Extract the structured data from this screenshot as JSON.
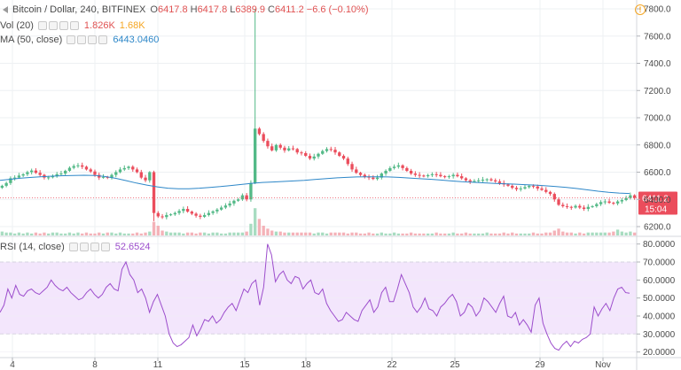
{
  "symbol": {
    "title": "Bitcoin / Dollar, 240, BITFINEX",
    "open_label": "O",
    "open": "6417.8",
    "high_label": "H",
    "high": "6417.8",
    "low_label": "L",
    "low": "6389.9",
    "close_label": "C",
    "close": "6411.2",
    "change": "−6.6 (−0.10%)"
  },
  "volume": {
    "label": "Vol (20)",
    "value1": "1.826K",
    "value2": "1.68K"
  },
  "ma": {
    "label": "MA (50, close)",
    "value": "6443.0460"
  },
  "rsi": {
    "label": "RSI (14, close)",
    "value": "52.6524"
  },
  "price_tag": {
    "price": "6411.2",
    "countdown": "15:04"
  },
  "alert_icon": "!",
  "price_axis": {
    "ticks": [
      "7800.0",
      "7600.0",
      "7400.0",
      "7200.0",
      "7000.0",
      "6800.0",
      "6600.0",
      "6400.0",
      "6200.0"
    ]
  },
  "rsi_axis": {
    "ticks": [
      "80.0000",
      "70.0000",
      "60.0000",
      "50.0000",
      "40.0000",
      "30.0000",
      "20.0000"
    ]
  },
  "time_axis": {
    "ticks": [
      "4",
      "8",
      "11",
      "15",
      "18",
      "22",
      "25",
      "29",
      "Nov"
    ]
  },
  "colors": {
    "up": "#53b987",
    "down": "#eb4d5c",
    "ma": "#2d87c8",
    "rsi": "#9c4dcc",
    "rsi_band": "#f3e6fc",
    "grid": "#eef0f3"
  },
  "chart_data": [
    {
      "type": "candlestick",
      "title": "Bitcoin / Dollar, 240, BITFINEX",
      "x_ticks": [
        "4",
        "8",
        "11",
        "15",
        "18",
        "22",
        "25",
        "29",
        "Nov"
      ],
      "ylim": [
        6150,
        7850
      ],
      "series": [
        {
          "name": "MA (50, close)",
          "values": [
            6540,
            6548,
            6556,
            6562,
            6567,
            6571,
            6574,
            6576,
            6577,
            6576,
            6568,
            6555,
            6538,
            6520,
            6505,
            6492,
            6482,
            6478,
            6478,
            6482,
            6488,
            6494,
            6502,
            6510,
            6518,
            6524,
            6528,
            6532,
            6536,
            6540,
            6546,
            6552,
            6558,
            6562,
            6565,
            6566,
            6566,
            6565,
            6562,
            6557,
            6552,
            6548,
            6542,
            6536,
            6530,
            6526,
            6522,
            6518,
            6515,
            6512,
            6508,
            6505,
            6500,
            6494,
            6488,
            6480,
            6470,
            6460,
            6452,
            6446,
            6443
          ]
        }
      ],
      "close": [
        6500,
        6520,
        6555,
        6560,
        6575,
        6585,
        6600,
        6612,
        6595,
        6580,
        6560,
        6562,
        6570,
        6585,
        6590,
        6610,
        6632,
        6645,
        6650,
        6640,
        6620,
        6605,
        6580,
        6560,
        6565,
        6560,
        6580,
        6600,
        6620,
        6630,
        6640,
        6620,
        6600,
        6560,
        6540,
        6600,
        6300,
        6275,
        6270,
        6285,
        6290,
        6300,
        6315,
        6330,
        6310,
        6295,
        6280,
        6272,
        6285,
        6300,
        6312,
        6325,
        6340,
        6355,
        6370,
        6390,
        6400,
        6430,
        6400,
        6520,
        6920,
        6880,
        6830,
        6790,
        6760,
        6800,
        6780,
        6760,
        6775,
        6770,
        6745,
        6740,
        6720,
        6700,
        6715,
        6735,
        6755,
        6770,
        6765,
        6745,
        6720,
        6700,
        6660,
        6620,
        6595,
        6580,
        6568,
        6560,
        6550,
        6560,
        6590,
        6610,
        6630,
        6640,
        6650,
        6630,
        6610,
        6590,
        6580,
        6575,
        6570,
        6578,
        6585,
        6580,
        6570,
        6565,
        6570,
        6580,
        6570,
        6555,
        6540,
        6530,
        6535,
        6540,
        6545,
        6548,
        6540,
        6532,
        6520,
        6510,
        6500,
        6485,
        6475,
        6480,
        6490,
        6500,
        6495,
        6480,
        6470,
        6455,
        6440,
        6400,
        6360,
        6350,
        6345,
        6340,
        6352,
        6340,
        6330,
        6345,
        6350,
        6365,
        6380,
        6385,
        6375,
        6370,
        6385,
        6395,
        6410,
        6430,
        6411
      ],
      "volume": [
        4,
        3,
        3,
        2,
        3,
        2,
        3,
        2,
        3,
        2,
        3,
        2,
        3,
        3,
        2,
        2,
        3,
        2,
        3,
        2,
        3,
        2,
        2,
        3,
        2,
        3,
        3,
        2,
        3,
        2,
        2,
        2,
        3,
        2,
        3,
        4,
        14,
        10,
        5,
        4,
        3,
        3,
        3,
        2,
        3,
        3,
        2,
        3,
        3,
        2,
        3,
        3,
        2,
        2,
        3,
        3,
        3,
        3,
        4,
        12,
        28,
        17,
        10,
        7,
        5,
        4,
        4,
        3,
        3,
        3,
        3,
        3,
        3,
        3,
        2,
        3,
        3,
        2,
        3,
        3,
        3,
        3,
        2,
        3,
        3,
        2,
        2,
        3,
        2,
        2,
        3,
        2,
        2,
        3,
        2,
        2,
        2,
        3,
        2,
        2,
        2,
        2,
        2,
        3,
        2,
        2,
        2,
        3,
        2,
        2,
        3,
        2,
        2,
        2,
        2,
        3,
        2,
        2,
        2,
        3,
        2,
        3,
        2,
        2,
        2,
        2,
        3,
        2,
        2,
        3,
        3,
        5,
        7,
        4,
        3,
        3,
        2,
        3,
        2,
        3,
        3,
        3,
        3,
        3,
        3,
        4,
        6,
        4,
        3,
        4,
        3
      ]
    },
    {
      "type": "line",
      "title": "RSI (14, close)",
      "ylim": [
        18,
        84
      ],
      "series": [
        {
          "name": "RSI (14, close)",
          "values": [
            42,
            46,
            55,
            50,
            57,
            52,
            51,
            54,
            55,
            53,
            52,
            54,
            56,
            60,
            57,
            55,
            54,
            56,
            53,
            51,
            49,
            50,
            53,
            55,
            52,
            50,
            52,
            56,
            58,
            55,
            54,
            66,
            70,
            63,
            60,
            53,
            55,
            50,
            42,
            48,
            52,
            46,
            40,
            30,
            25,
            23,
            24,
            26,
            28,
            35,
            29,
            33,
            38,
            37,
            40,
            36,
            38,
            42,
            45,
            47,
            43,
            49,
            55,
            53,
            58,
            60,
            46,
            56,
            80,
            74,
            59,
            63,
            65,
            60,
            58,
            62,
            61,
            55,
            58,
            60,
            53,
            52,
            55,
            47,
            43,
            40,
            37,
            38,
            42,
            40,
            38,
            37,
            43,
            46,
            49,
            42,
            45,
            53,
            56,
            48,
            48,
            55,
            63,
            58,
            53,
            45,
            42,
            45,
            50,
            44,
            43,
            40,
            45,
            47,
            50,
            52,
            48,
            40,
            42,
            47,
            45,
            40,
            43,
            50,
            48,
            45,
            42,
            47,
            51,
            40,
            39,
            42,
            35,
            38,
            35,
            31,
            46,
            50,
            36,
            30,
            25,
            22,
            21,
            24,
            26,
            23,
            26,
            25,
            27,
            28,
            30,
            45,
            40,
            44,
            47,
            43,
            50,
            55,
            56,
            53,
            52.65
          ]
        }
      ]
    }
  ]
}
